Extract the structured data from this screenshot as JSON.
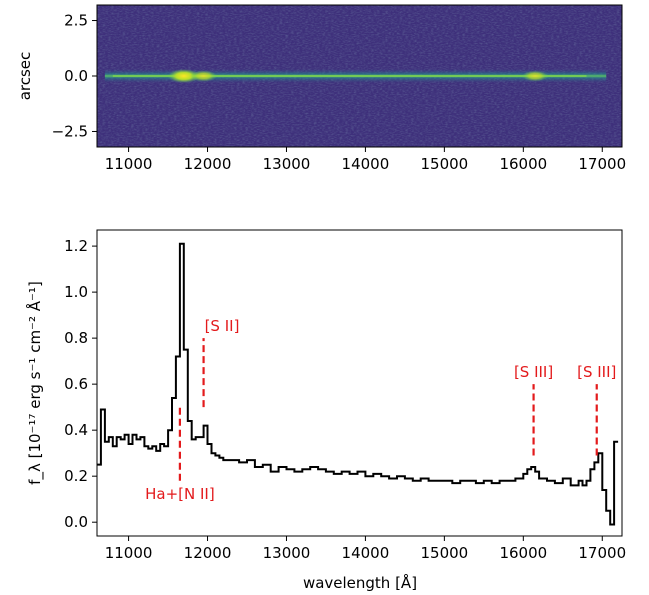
{
  "chart_data": [
    {
      "type": "heatmap",
      "ylabel": "arcsec",
      "xlim": [
        10600,
        17250
      ],
      "ylim": [
        -3.2,
        3.2
      ],
      "xticks": [
        "11000",
        "12000",
        "13000",
        "14000",
        "15000",
        "16000",
        "17000"
      ],
      "yticks": [
        "2.5",
        "0.0",
        "−2.5"
      ],
      "colormap": "viridis",
      "trace_center": 0.0,
      "hotspots": [
        {
          "x": 11700,
          "intensity": 1.0
        },
        {
          "x": 11950,
          "intensity": 0.55
        },
        {
          "x": 16150,
          "intensity": 0.5
        }
      ]
    },
    {
      "type": "line",
      "drawstyle": "steps",
      "xlabel": "wavelength [Å]",
      "ylabel": "f_λ [10⁻¹⁷ erg s⁻¹ cm⁻² Å⁻¹]",
      "xlim": [
        10600,
        17250
      ],
      "ylim": [
        -0.06,
        1.27
      ],
      "xticks": [
        "11000",
        "12000",
        "13000",
        "14000",
        "15000",
        "16000",
        "17000"
      ],
      "yticks": [
        "0.0",
        "0.2",
        "0.4",
        "0.6",
        "0.8",
        "1.0",
        "1.2"
      ],
      "color": "#000000",
      "x": [
        10600,
        10650,
        10700,
        10750,
        10800,
        10850,
        10900,
        10950,
        11000,
        11050,
        11100,
        11150,
        11200,
        11250,
        11300,
        11350,
        11400,
        11450,
        11500,
        11550,
        11600,
        11650,
        11700,
        11750,
        11800,
        11850,
        11900,
        11950,
        12000,
        12050,
        12100,
        12150,
        12200,
        12300,
        12400,
        12500,
        12600,
        12700,
        12800,
        12900,
        13000,
        13100,
        13200,
        13300,
        13400,
        13500,
        13600,
        13700,
        13800,
        13900,
        14000,
        14100,
        14200,
        14300,
        14400,
        14500,
        14600,
        14700,
        14800,
        14900,
        15000,
        15100,
        15200,
        15300,
        15400,
        15500,
        15600,
        15700,
        15800,
        15900,
        16000,
        16050,
        16100,
        16150,
        16200,
        16300,
        16400,
        16500,
        16600,
        16700,
        16750,
        16800,
        16850,
        16900,
        16950,
        17000,
        17050,
        17100,
        17150
      ],
      "y": [
        0.25,
        0.49,
        0.35,
        0.37,
        0.33,
        0.37,
        0.36,
        0.38,
        0.34,
        0.38,
        0.36,
        0.37,
        0.33,
        0.32,
        0.33,
        0.31,
        0.34,
        0.33,
        0.4,
        0.54,
        0.72,
        1.21,
        0.75,
        0.44,
        0.36,
        0.37,
        0.37,
        0.42,
        0.34,
        0.3,
        0.29,
        0.28,
        0.27,
        0.27,
        0.26,
        0.27,
        0.24,
        0.25,
        0.22,
        0.24,
        0.23,
        0.22,
        0.23,
        0.24,
        0.23,
        0.22,
        0.21,
        0.22,
        0.21,
        0.22,
        0.2,
        0.21,
        0.2,
        0.19,
        0.2,
        0.19,
        0.18,
        0.19,
        0.18,
        0.18,
        0.18,
        0.17,
        0.18,
        0.18,
        0.17,
        0.18,
        0.17,
        0.18,
        0.18,
        0.19,
        0.21,
        0.23,
        0.24,
        0.22,
        0.19,
        0.18,
        0.17,
        0.19,
        0.16,
        0.18,
        0.16,
        0.18,
        0.23,
        0.26,
        0.3,
        0.14,
        0.05,
        -0.01,
        0.35
      ],
      "annotations": [
        {
          "label": "Ha+[N II]",
          "x": 11650,
          "y_low": 0.18,
          "y_high": 0.5
        },
        {
          "label": "[S II]",
          "x": 11950,
          "y_low": 0.5,
          "y_high": 0.8
        },
        {
          "label": "[S III]",
          "x": 16130,
          "y_low": 0.29,
          "y_high": 0.6
        },
        {
          "label": "[S III]",
          "x": 16930,
          "y_low": 0.29,
          "y_high": 0.6
        }
      ],
      "annotation_color": "#e31a1c"
    }
  ]
}
